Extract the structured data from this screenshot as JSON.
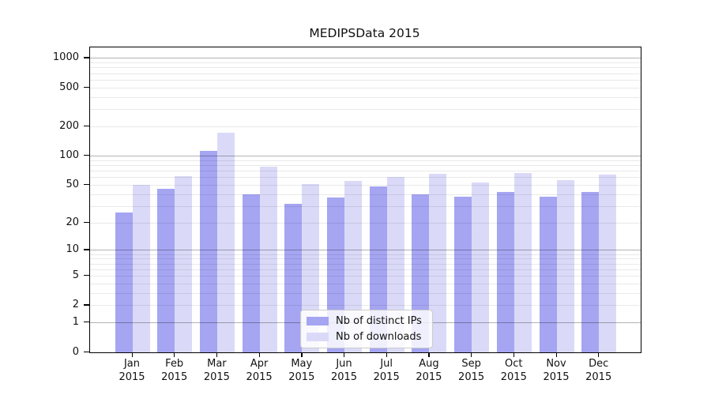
{
  "chart_data": {
    "type": "bar",
    "title": "MEDIPSData 2015",
    "scale": "log1p",
    "xlabel": "",
    "ylabel": "",
    "categories": [
      "Jan",
      "Feb",
      "Mar",
      "Apr",
      "May",
      "Jun",
      "Jul",
      "Aug",
      "Sep",
      "Oct",
      "Nov",
      "Dec"
    ],
    "year_label": "2015",
    "series": [
      {
        "name": "Nb of distinct IPs",
        "color": "#a5a5f2",
        "values": [
          26,
          46,
          113,
          40,
          32,
          37,
          48,
          40,
          38,
          42,
          38,
          42
        ]
      },
      {
        "name": "Nb of downloads",
        "color": "#dadaf8",
        "values": [
          50,
          62,
          175,
          78,
          51,
          55,
          61,
          65,
          53,
          67,
          56,
          64
        ]
      }
    ],
    "y_ticks": [
      1000,
      500,
      200,
      100,
      50,
      20,
      10,
      5,
      2,
      1,
      0
    ],
    "ylim": [
      0,
      1300
    ],
    "grid": "on",
    "grid_minor_values": [
      2,
      3,
      4,
      5,
      6,
      7,
      8,
      9,
      20,
      30,
      40,
      50,
      60,
      70,
      80,
      90,
      200,
      300,
      400,
      500,
      600,
      700,
      800,
      900
    ],
    "grid_major_values": [
      1,
      10,
      100,
      1000
    ],
    "legend_position": "lower center"
  },
  "colors": {
    "background": "#ffffff",
    "spine": "#000000",
    "text": "#111111",
    "grid_major": "#b3b3b3",
    "grid_minor": "#e8e8e8",
    "legend_border": "#cccccc"
  }
}
